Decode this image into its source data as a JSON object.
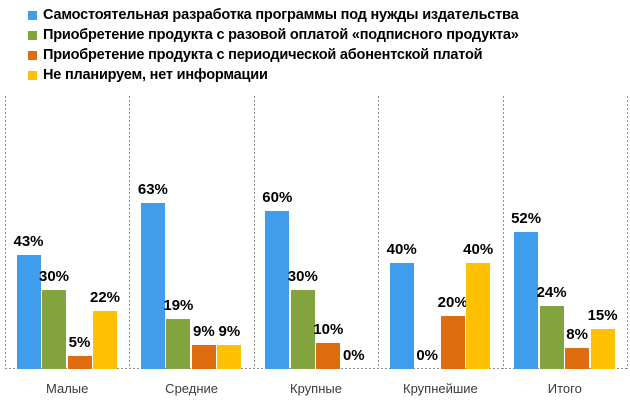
{
  "chart_data": {
    "type": "bar",
    "title": "",
    "xlabel": "",
    "ylabel": "",
    "value_suffix": "%",
    "ylim": [
      0,
      103
    ],
    "grid": "vertical-dashed",
    "legend_position": "top-left",
    "categories": [
      "Малые",
      "Средние",
      "Крупные",
      "Крупнейшие",
      "Итого"
    ],
    "series": [
      {
        "name": "Самостоятельная разработка программы под нужды издательства",
        "color": "#3F9DEB",
        "values": [
          43,
          63,
          60,
          40,
          52
        ]
      },
      {
        "name": "Приобретение продукта с  разовой оплатой «подписного продукта»",
        "color": "#82A33E",
        "values": [
          30,
          19,
          30,
          0,
          24
        ]
      },
      {
        "name": "Приобретение продукта с периодической абонентской платой",
        "color": "#DE6D10",
        "values": [
          5,
          9,
          10,
          20,
          8
        ]
      },
      {
        "name": "Не планируем, нет информации",
        "color": "#FFC103",
        "values": [
          22,
          9,
          0,
          40,
          15
        ]
      }
    ],
    "colors": {
      "grid_line": "#8d8d8d",
      "value_label": "#000000",
      "category_label": "#3a3a3a",
      "background": "#ffffff"
    }
  }
}
